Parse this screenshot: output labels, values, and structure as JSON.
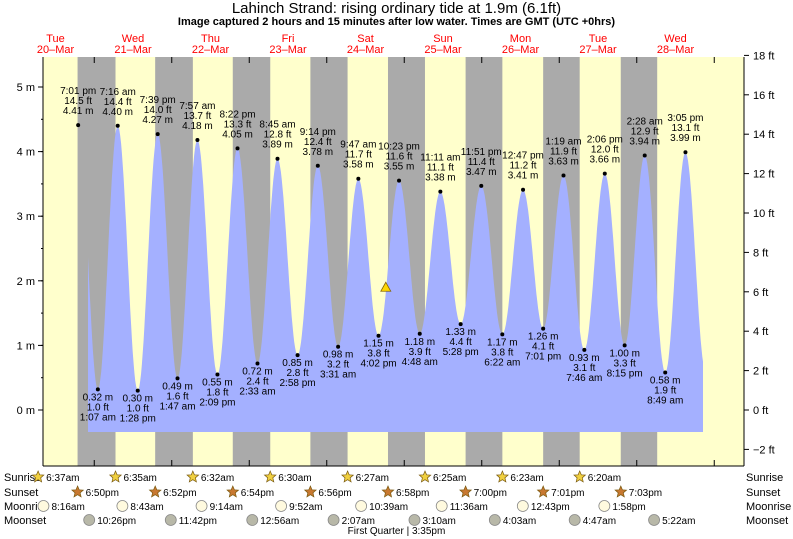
{
  "header": {
    "title": "Lahinch Strand: rising  ordinary tide at 1.9m (6.1ft)",
    "subtitle": "Image captured 2 hours and 15 minutes after low water. Times are GMT (UTC +0hrs)"
  },
  "colors": {
    "water": "#a4b0ff",
    "day": "#ffffcc",
    "night": "#aaaaaa",
    "day_label": "#ff0000",
    "current_marker": "#ffd700",
    "sun_icon": "#f0d040",
    "sunset_icon": "#c87830",
    "moon_icon": "#fffadf",
    "moonset_icon": "#b8b8a8"
  },
  "chart_data": {
    "type": "area",
    "title": "Lahinch Strand: rising  ordinary tide at 1.9m (6.1ft)",
    "left_axis": {
      "unit": "m",
      "range": [
        -0.5,
        5.4
      ],
      "ticks": [
        0,
        1,
        2,
        3,
        4,
        5
      ],
      "tick_labels": [
        "0 m",
        "1 m",
        "2 m",
        "3 m",
        "4 m",
        "5 m"
      ]
    },
    "right_axis": {
      "unit": "ft",
      "ticks": [
        -2,
        0,
        2,
        4,
        6,
        8,
        10,
        12,
        14,
        16,
        18
      ],
      "tick_labels": [
        "−2 ft",
        "0 ft",
        "2 ft",
        "4 ft",
        "6 ft",
        "8 ft",
        "10 ft",
        "12 ft",
        "14 ft",
        "16 ft",
        "18 ft"
      ]
    },
    "days": [
      {
        "dow": "Tue",
        "date": "20–Mar"
      },
      {
        "dow": "Wed",
        "date": "21–Mar"
      },
      {
        "dow": "Thu",
        "date": "22–Mar"
      },
      {
        "dow": "Fri",
        "date": "23–Mar"
      },
      {
        "dow": "Sat",
        "date": "24–Mar"
      },
      {
        "dow": "Sun",
        "date": "25–Mar"
      },
      {
        "dow": "Mon",
        "date": "26–Mar"
      },
      {
        "dow": "Tue",
        "date": "27–Mar"
      },
      {
        "dow": "Wed",
        "date": "28–Mar"
      }
    ],
    "tides": [
      {
        "type": "high",
        "day": 0,
        "time": "7:01 pm",
        "m": 4.41,
        "ft": "14.5 ft",
        "m_label": "4.41 m"
      },
      {
        "type": "low",
        "day": 1,
        "time": "1:07 am",
        "m": 0.32,
        "ft": "1.0 ft",
        "m_label": "0.32 m"
      },
      {
        "type": "high",
        "day": 1,
        "time": "7:16 am",
        "m": 4.4,
        "ft": "14.4 ft",
        "m_label": "4.40 m"
      },
      {
        "type": "low",
        "day": 1,
        "time": "1:28 pm",
        "m": 0.3,
        "ft": "1.0 ft",
        "m_label": "0.30 m"
      },
      {
        "type": "high",
        "day": 1,
        "time": "7:39 pm",
        "m": 4.27,
        "ft": "14.0 ft",
        "m_label": "4.27 m"
      },
      {
        "type": "low",
        "day": 2,
        "time": "1:47 am",
        "m": 0.49,
        "ft": "1.6 ft",
        "m_label": "0.49 m"
      },
      {
        "type": "high",
        "day": 2,
        "time": "7:57 am",
        "m": 4.18,
        "ft": "13.7 ft",
        "m_label": "4.18 m"
      },
      {
        "type": "low",
        "day": 2,
        "time": "2:09 pm",
        "m": 0.55,
        "ft": "1.8 ft",
        "m_label": "0.55 m"
      },
      {
        "type": "high",
        "day": 2,
        "time": "8:22 pm",
        "m": 4.05,
        "ft": "13.3 ft",
        "m_label": "4.05 m"
      },
      {
        "type": "low",
        "day": 3,
        "time": "2:33 am",
        "m": 0.72,
        "ft": "2.4 ft",
        "m_label": "0.72 m"
      },
      {
        "type": "high",
        "day": 3,
        "time": "8:45 am",
        "m": 3.89,
        "ft": "12.8 ft",
        "m_label": "3.89 m"
      },
      {
        "type": "low",
        "day": 3,
        "time": "2:58 pm",
        "m": 0.85,
        "ft": "2.8 ft",
        "m_label": "0.85 m"
      },
      {
        "type": "high",
        "day": 3,
        "time": "9:14 pm",
        "m": 3.78,
        "ft": "12.4 ft",
        "m_label": "3.78 m"
      },
      {
        "type": "low",
        "day": 4,
        "time": "3:31 am",
        "m": 0.98,
        "ft": "3.2 ft",
        "m_label": "0.98 m"
      },
      {
        "type": "high",
        "day": 4,
        "time": "9:47 am",
        "m": 3.58,
        "ft": "11.7 ft",
        "m_label": "3.58 m"
      },
      {
        "type": "low",
        "day": 4,
        "time": "4:02 pm",
        "m": 1.15,
        "ft": "3.8 ft",
        "m_label": "1.15 m"
      },
      {
        "type": "high",
        "day": 4,
        "time": "10:23 pm",
        "m": 3.55,
        "ft": "11.6 ft",
        "m_label": "3.55 m"
      },
      {
        "type": "low",
        "day": 5,
        "time": "4:48 am",
        "m": 1.18,
        "ft": "3.9 ft",
        "m_label": "1.18 m"
      },
      {
        "type": "high",
        "day": 5,
        "time": "11:11 am",
        "m": 3.38,
        "ft": "11.1 ft",
        "m_label": "3.38 m"
      },
      {
        "type": "low",
        "day": 5,
        "time": "5:28 pm",
        "m": 1.33,
        "ft": "4.4 ft",
        "m_label": "1.33 m"
      },
      {
        "type": "high",
        "day": 5,
        "time": "11:51 pm",
        "m": 3.47,
        "ft": "11.4 ft",
        "m_label": "3.47 m"
      },
      {
        "type": "low",
        "day": 6,
        "time": "6:22 am",
        "m": 1.17,
        "ft": "3.8 ft",
        "m_label": "1.17 m"
      },
      {
        "type": "high",
        "day": 6,
        "time": "12:47 pm",
        "m": 3.41,
        "ft": "11.2 ft",
        "m_label": "3.41 m"
      },
      {
        "type": "low",
        "day": 6,
        "time": "7:01 pm",
        "m": 1.26,
        "ft": "4.1 ft",
        "m_label": "1.26 m"
      },
      {
        "type": "high",
        "day": 7,
        "time": "1:19 am",
        "m": 3.63,
        "ft": "11.9 ft",
        "m_label": "3.63 m"
      },
      {
        "type": "low",
        "day": 7,
        "time": "7:46 am",
        "m": 0.93,
        "ft": "3.1 ft",
        "m_label": "0.93 m"
      },
      {
        "type": "high",
        "day": 7,
        "time": "2:06 pm",
        "m": 3.66,
        "ft": "12.0 ft",
        "m_label": "3.66 m"
      },
      {
        "type": "low",
        "day": 7,
        "time": "8:15 pm",
        "m": 1.0,
        "ft": "3.3 ft",
        "m_label": "1.00 m"
      },
      {
        "type": "high",
        "day": 8,
        "time": "2:28 am",
        "m": 3.94,
        "ft": "12.9 ft",
        "m_label": "3.94 m"
      },
      {
        "type": "low",
        "day": 8,
        "time": "8:49 am",
        "m": 0.58,
        "ft": "1.9 ft",
        "m_label": "0.58 m"
      },
      {
        "type": "high",
        "day": 8,
        "time": "3:05 pm",
        "m": 3.99,
        "ft": "13.1 ft",
        "m_label": "3.99 m"
      }
    ],
    "current": {
      "day": 4,
      "time": "6:17 pm",
      "m": 1.9
    },
    "sunrise": [
      "6:37am",
      "6:35am",
      "6:32am",
      "6:30am",
      "6:27am",
      "6:25am",
      "6:23am",
      "6:20am"
    ],
    "sunset": [
      "6:50pm",
      "6:52pm",
      "6:54pm",
      "6:56pm",
      "6:58pm",
      "7:00pm",
      "7:01pm",
      "7:03pm"
    ],
    "moonrise": [
      "8:16am",
      "8:43am",
      "9:14am",
      "9:52am",
      "10:39am",
      "11:36am",
      "12:43pm",
      "1:58pm"
    ],
    "moonset": [
      "10:26pm",
      "11:42pm",
      "12:56am",
      "2:07am",
      "3:10am",
      "4:03am",
      "4:47am",
      "5:22am"
    ],
    "row_labels": {
      "sunrise": "Sunrise",
      "sunset": "Sunset",
      "moonrise": "Moonrise",
      "moonset": "Moonset"
    },
    "moon_phase": "First Quarter | 3:35pm"
  }
}
